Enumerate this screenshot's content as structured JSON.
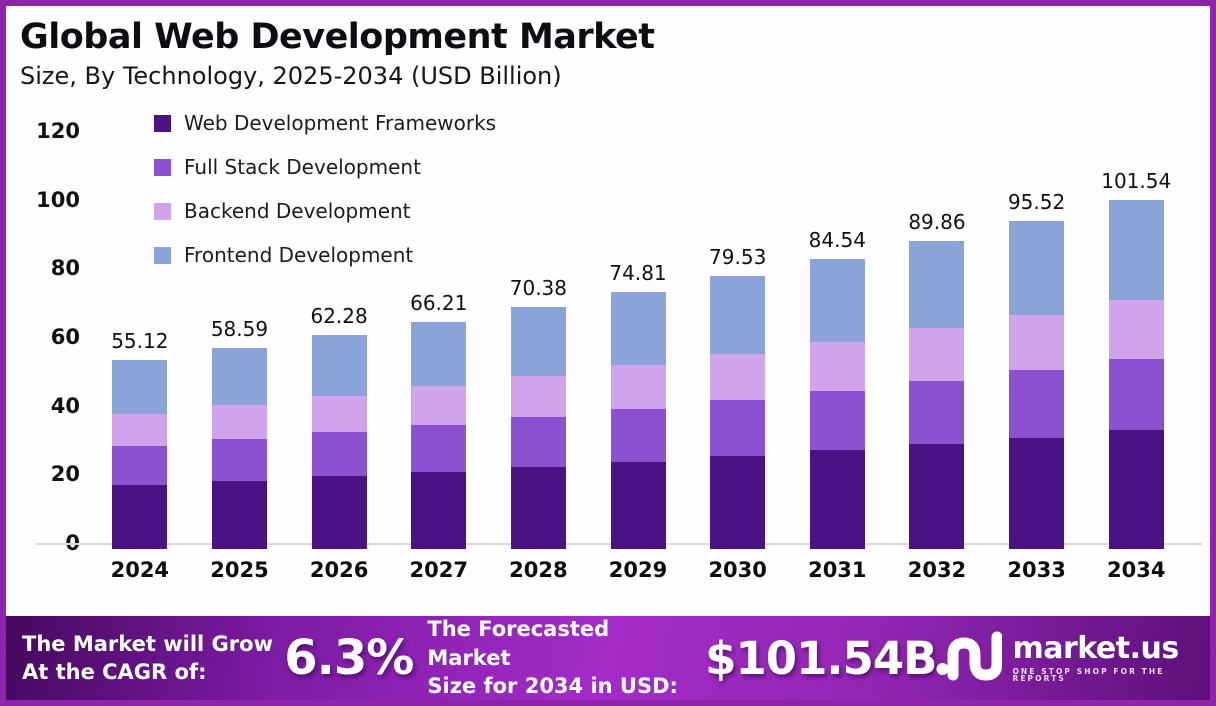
{
  "header": {
    "title": "Global Web Development Market",
    "subtitle": "Size, By Technology, 2025-2034 (USD Billion)"
  },
  "chart_data": {
    "type": "bar",
    "stacked": true,
    "title": "Global Web Development Market Size, By Technology, 2025-2034 (USD Billion)",
    "categories": [
      "2024",
      "2025",
      "2026",
      "2027",
      "2028",
      "2029",
      "2030",
      "2031",
      "2032",
      "2033",
      "2034"
    ],
    "totals": [
      "55.12",
      "58.59",
      "62.28",
      "66.21",
      "70.38",
      "74.81",
      "79.53",
      "84.54",
      "89.86",
      "95.52",
      "101.54"
    ],
    "series": [
      {
        "name": "Web Development Frameworks",
        "color": "#4a1283",
        "values": [
          18.74,
          19.92,
          21.18,
          22.51,
          23.93,
          25.44,
          27.04,
          28.74,
          30.55,
          32.48,
          34.52
        ]
      },
      {
        "name": "Full Stack Development",
        "color": "#8b51d0",
        "values": [
          11.3,
          12.01,
          12.77,
          13.57,
          14.43,
          15.34,
          16.3,
          17.33,
          18.42,
          19.58,
          20.82
        ]
      },
      {
        "name": "Backend Development",
        "color": "#cfa4ea",
        "values": [
          9.37,
          9.96,
          10.59,
          11.26,
          11.96,
          12.72,
          13.52,
          14.37,
          15.28,
          16.24,
          17.26
        ]
      },
      {
        "name": "Frontend Development",
        "color": "#8ba3d9",
        "values": [
          15.71,
          16.7,
          17.75,
          18.87,
          20.06,
          21.32,
          22.67,
          24.09,
          25.61,
          27.22,
          28.94
        ]
      }
    ],
    "ylabel": "",
    "xlabel": "",
    "ylim": [
      0,
      120
    ],
    "yticks": [
      0,
      20,
      40,
      60,
      80,
      100,
      120
    ],
    "grid": false,
    "legend_position": "upper-left",
    "value_labels": "total-above-bar"
  },
  "banner": {
    "left_line1": "The Market will Grow",
    "left_line2": "At the CAGR of:",
    "cagr": "6.3%",
    "mid_line1": "The Forecasted Market",
    "mid_line2": "Size for 2034 in USD:",
    "forecast_value": "$101.54B",
    "brand": "market.us",
    "brand_tagline": "ONE STOP SHOP FOR THE REPORTS"
  },
  "colors": {
    "frame_border": "#8e24aa",
    "banner_gradient_mid": "#a42cc9",
    "axis_text": "#111111",
    "baseline": "#d9d9de"
  },
  "icons": {
    "brand_mark": "market-us-logo-mark"
  }
}
